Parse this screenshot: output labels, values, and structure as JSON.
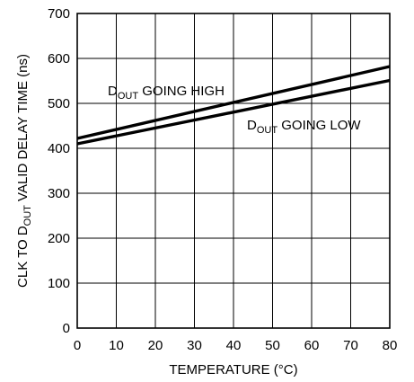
{
  "chart_data": {
    "type": "line",
    "xlabel": "TEMPERATURE (°C)",
    "ylabel": {
      "pre": "CLK TO D",
      "sub": "OUT",
      "post": " VALID DELAY TIME (ns)"
    },
    "xlim": [
      0,
      80
    ],
    "ylim": [
      0,
      700
    ],
    "xticks": [
      0,
      10,
      20,
      30,
      40,
      50,
      60,
      70,
      80
    ],
    "yticks": [
      0,
      100,
      200,
      300,
      400,
      500,
      600,
      700
    ],
    "grid": true,
    "series": [
      {
        "name": {
          "pre": "D",
          "sub": "OUT",
          "post": " GOING HIGH"
        },
        "x": [
          0,
          80
        ],
        "y": [
          422,
          582
        ]
      },
      {
        "name": {
          "pre": "D",
          "sub": "OUT",
          "post": " GOING LOW"
        },
        "x": [
          0,
          80
        ],
        "y": [
          410,
          551
        ]
      }
    ]
  }
}
